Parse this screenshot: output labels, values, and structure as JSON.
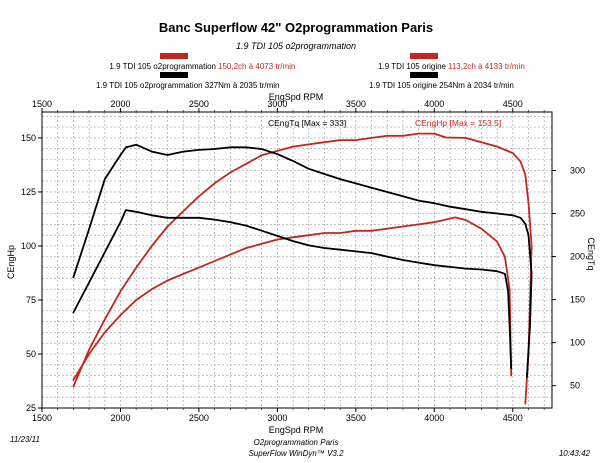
{
  "chart_data": {
    "type": "line",
    "title": "Banc Superflow 42\" O2programmation Paris",
    "subtitle": "1.9 TDI 105 o2programmation",
    "x_axis": {
      "label": "EngSpd RPM",
      "range": [
        1500,
        4750
      ],
      "ticks": [
        1500,
        2000,
        2500,
        3000,
        3500,
        4000,
        4500
      ]
    },
    "y_left": {
      "label": "CEngHp",
      "range": [
        25,
        162
      ],
      "ticks": [
        25,
        50,
        75,
        100,
        125,
        150
      ]
    },
    "y_right": {
      "label": "CEngTq",
      "range": [
        24,
        368
      ],
      "ticks": [
        50,
        100,
        150,
        200,
        250,
        300
      ]
    },
    "grid": true,
    "legend": {
      "left": [
        {
          "text": "1.9 TDI 105 o2programmation",
          "value": "150,2ch à 4073 tr/min",
          "color": "#c0281f"
        },
        {
          "text": "1.9 TDI 105 o2programmation 327Nm à 2035 tr/min",
          "color": "#000000"
        }
      ],
      "right": [
        {
          "text": "1.9 TDI 105 origine",
          "value": "113,2ch à 4133 tr/min",
          "color": "#c0281f"
        },
        {
          "text": "1.9 TDI 105 origine 254Nm à 2034 tr/min",
          "color": "#000000"
        }
      ]
    },
    "annotations": {
      "torque_max": "CEngTq [Max = 333]",
      "power_max": "CEngHp [Max = 153.5]"
    },
    "series": [
      {
        "name": "1.9 TDI 105 o2programmation",
        "quantity": "CEngHp",
        "axis": "left",
        "color": "#c0281f",
        "x": [
          1700,
          1800,
          1900,
          2000,
          2100,
          2200,
          2300,
          2400,
          2500,
          2600,
          2700,
          2800,
          2900,
          3000,
          3100,
          3200,
          3300,
          3400,
          3500,
          3600,
          3700,
          3800,
          3900,
          4000,
          4073,
          4200,
          4300,
          4400,
          4500,
          4550,
          4580,
          4600,
          4620,
          4600,
          4580
        ],
        "y": [
          35,
          52,
          66,
          79,
          90,
          100,
          109,
          116,
          123,
          129,
          134,
          138,
          142,
          144,
          146,
          147,
          148,
          149,
          149,
          150,
          151,
          151,
          152,
          152,
          150.2,
          150,
          148,
          146,
          143,
          139,
          133,
          120,
          100,
          50,
          27
        ]
      },
      {
        "name": "1.9 TDI 105 o2programmation",
        "quantity": "CEngTq",
        "axis": "right",
        "color": "#000000",
        "x": [
          1700,
          1800,
          1900,
          2000,
          2035,
          2100,
          2200,
          2300,
          2400,
          2500,
          2600,
          2700,
          2800,
          2900,
          3000,
          3100,
          3200,
          3300,
          3400,
          3500,
          3600,
          3700,
          3800,
          3900,
          4000,
          4100,
          4200,
          4300,
          4400,
          4500,
          4550,
          4580,
          4600,
          4620,
          4610,
          4590
        ],
        "y": [
          176,
          232,
          290,
          318,
          327,
          330,
          322,
          318,
          322,
          324,
          325,
          327,
          327,
          325,
          319,
          311,
          302,
          296,
          290,
          285,
          280,
          275,
          270,
          265,
          262,
          258,
          255,
          252,
          250,
          248,
          245,
          238,
          225,
          180,
          120,
          60
        ]
      },
      {
        "name": "1.9 TDI 105 origine",
        "quantity": "CEngHp",
        "axis": "left",
        "color": "#c0281f",
        "x": [
          1700,
          1800,
          1900,
          2000,
          2100,
          2200,
          2300,
          2400,
          2500,
          2600,
          2700,
          2800,
          2900,
          3000,
          3100,
          3200,
          3300,
          3400,
          3500,
          3600,
          3700,
          3800,
          3900,
          4000,
          4133,
          4200,
          4300,
          4400,
          4450,
          4480,
          4490
        ],
        "y": [
          38,
          50,
          60,
          68,
          75,
          80,
          84,
          87,
          90,
          93,
          96,
          99,
          101,
          103,
          104,
          105,
          106,
          106,
          107,
          107,
          108,
          109,
          110,
          111,
          113.2,
          112,
          108,
          102,
          95,
          80,
          40
        ]
      },
      {
        "name": "1.9 TDI 105 origine",
        "quantity": "CEngTq",
        "axis": "right",
        "color": "#000000",
        "x": [
          1700,
          1800,
          1900,
          2000,
          2034,
          2100,
          2200,
          2300,
          2400,
          2500,
          2600,
          2700,
          2800,
          2900,
          3000,
          3100,
          3200,
          3300,
          3400,
          3500,
          3600,
          3700,
          3800,
          3900,
          4000,
          4100,
          4200,
          4300,
          4400,
          4450,
          4470,
          4480,
          4490
        ],
        "y": [
          135,
          170,
          205,
          240,
          254,
          252,
          248,
          245,
          245,
          245,
          243,
          240,
          236,
          230,
          224,
          218,
          213,
          210,
          208,
          206,
          204,
          200,
          196,
          193,
          190,
          188,
          186,
          185,
          183,
          180,
          160,
          120,
          70
        ]
      }
    ]
  },
  "footer": {
    "date": "11/23/11",
    "org": "O2programmation Paris",
    "software": "SuperFlow WinDyn™ V3.2",
    "time": "10:43:42"
  }
}
